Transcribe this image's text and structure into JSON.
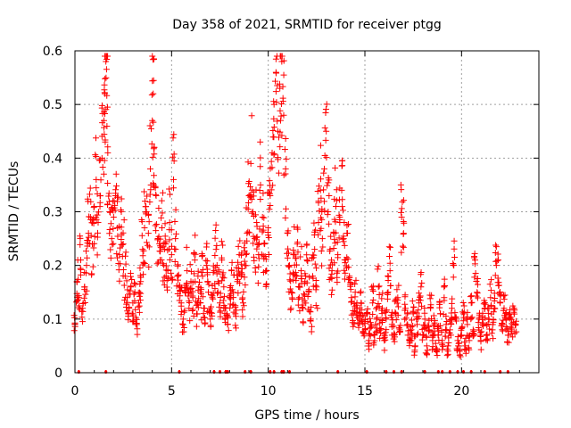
{
  "chart_data": {
    "type": "scatter",
    "title": "Day 358 of 2021, SRMTID for receiver ptgg",
    "xlabel": "GPS time / hours",
    "ylabel": "SRMTID / TECUs",
    "xlim": [
      0,
      24
    ],
    "ylim": [
      0,
      0.6
    ],
    "xticks": [
      0,
      5,
      10,
      15,
      20
    ],
    "xtick_labels": [
      "0",
      "5",
      "10",
      "15",
      "20"
    ],
    "yticks": [
      0,
      0.1,
      0.2,
      0.3,
      0.4,
      0.5,
      0.6
    ],
    "ytick_labels": [
      "0",
      "0.1",
      "0.2",
      "0.3",
      "0.4",
      "0.5",
      "0.6"
    ],
    "grid": true,
    "marker": "+",
    "color": "#ff0000",
    "series": [
      {
        "name": "SRMTID",
        "points": [
          [
            0.0,
            0.09
          ],
          [
            0.1,
            0.17
          ],
          [
            0.2,
            0.14
          ],
          [
            0.3,
            0.21
          ],
          [
            0.4,
            0.12
          ],
          [
            0.5,
            0.16
          ],
          [
            0.6,
            0.2
          ],
          [
            0.7,
            0.26
          ],
          [
            0.8,
            0.29
          ],
          [
            0.9,
            0.24
          ],
          [
            1.0,
            0.31
          ],
          [
            1.1,
            0.36
          ],
          [
            1.2,
            0.28
          ],
          [
            1.3,
            0.33
          ],
          [
            1.4,
            0.4
          ],
          [
            1.5,
            0.47
          ],
          [
            1.55,
            0.52
          ],
          [
            1.6,
            0.58
          ],
          [
            1.65,
            0.59
          ],
          [
            1.7,
            0.41
          ],
          [
            1.8,
            0.3
          ],
          [
            1.9,
            0.25
          ],
          [
            2.0,
            0.29
          ],
          [
            2.1,
            0.33
          ],
          [
            2.2,
            0.27
          ],
          [
            2.3,
            0.22
          ],
          [
            2.4,
            0.3
          ],
          [
            2.5,
            0.24
          ],
          [
            2.6,
            0.18
          ],
          [
            2.7,
            0.14
          ],
          [
            2.8,
            0.12
          ],
          [
            2.9,
            0.16
          ],
          [
            3.0,
            0.11
          ],
          [
            3.1,
            0.15
          ],
          [
            3.2,
            0.09
          ],
          [
            3.3,
            0.13
          ],
          [
            3.4,
            0.17
          ],
          [
            3.5,
            0.23
          ],
          [
            3.6,
            0.27
          ],
          [
            3.7,
            0.3
          ],
          [
            3.8,
            0.26
          ],
          [
            3.9,
            0.38
          ],
          [
            4.0,
            0.47
          ],
          [
            4.05,
            0.52
          ],
          [
            4.1,
            0.42
          ],
          [
            4.2,
            0.33
          ],
          [
            4.3,
            0.25
          ],
          [
            4.4,
            0.21
          ],
          [
            4.5,
            0.27
          ],
          [
            4.6,
            0.2
          ],
          [
            4.7,
            0.24
          ],
          [
            4.8,
            0.19
          ],
          [
            4.9,
            0.28
          ],
          [
            5.0,
            0.22
          ],
          [
            5.1,
            0.36
          ],
          [
            5.2,
            0.25
          ],
          [
            5.3,
            0.18
          ],
          [
            5.4,
            0.16
          ],
          [
            5.5,
            0.13
          ],
          [
            5.6,
            0.1
          ],
          [
            5.7,
            0.15
          ],
          [
            5.8,
            0.19
          ],
          [
            5.9,
            0.12
          ],
          [
            6.0,
            0.17
          ],
          [
            6.1,
            0.14
          ],
          [
            6.2,
            0.21
          ],
          [
            6.3,
            0.11
          ],
          [
            6.4,
            0.16
          ],
          [
            6.5,
            0.13
          ],
          [
            6.6,
            0.18
          ],
          [
            6.7,
            0.12
          ],
          [
            6.8,
            0.2
          ],
          [
            6.9,
            0.15
          ],
          [
            7.0,
            0.1
          ],
          [
            7.1,
            0.14
          ],
          [
            7.2,
            0.19
          ],
          [
            7.3,
            0.23
          ],
          [
            7.4,
            0.17
          ],
          [
            7.5,
            0.13
          ],
          [
            7.6,
            0.21
          ],
          [
            7.7,
            0.16
          ],
          [
            7.8,
            0.12
          ],
          [
            7.9,
            0.09
          ],
          [
            8.0,
            0.14
          ],
          [
            8.1,
            0.19
          ],
          [
            8.2,
            0.15
          ],
          [
            8.3,
            0.11
          ],
          [
            8.4,
            0.17
          ],
          [
            8.5,
            0.22
          ],
          [
            8.6,
            0.18
          ],
          [
            8.7,
            0.13
          ],
          [
            8.8,
            0.2
          ],
          [
            8.9,
            0.26
          ],
          [
            9.0,
            0.33
          ],
          [
            9.1,
            0.39
          ],
          [
            9.2,
            0.3
          ],
          [
            9.3,
            0.25
          ],
          [
            9.4,
            0.28
          ],
          [
            9.5,
            0.22
          ],
          [
            9.6,
            0.35
          ],
          [
            9.7,
            0.29
          ],
          [
            9.8,
            0.24
          ],
          [
            9.9,
            0.19
          ],
          [
            10.0,
            0.27
          ],
          [
            10.1,
            0.33
          ],
          [
            10.2,
            0.41
          ],
          [
            10.3,
            0.5
          ],
          [
            10.4,
            0.56
          ],
          [
            10.5,
            0.45
          ],
          [
            10.6,
            0.53
          ],
          [
            10.7,
            0.58
          ],
          [
            10.8,
            0.48
          ],
          [
            10.9,
            0.38
          ],
          [
            11.0,
            0.26
          ],
          [
            11.1,
            0.2
          ],
          [
            11.2,
            0.15
          ],
          [
            11.3,
            0.22
          ],
          [
            11.4,
            0.18
          ],
          [
            11.5,
            0.24
          ],
          [
            11.6,
            0.14
          ],
          [
            11.7,
            0.19
          ],
          [
            11.8,
            0.12
          ],
          [
            11.9,
            0.17
          ],
          [
            12.0,
            0.21
          ],
          [
            12.1,
            0.15
          ],
          [
            12.2,
            0.1
          ],
          [
            12.3,
            0.18
          ],
          [
            12.4,
            0.23
          ],
          [
            12.5,
            0.16
          ],
          [
            12.6,
            0.28
          ],
          [
            12.7,
            0.34
          ],
          [
            12.8,
            0.25
          ],
          [
            12.9,
            0.38
          ],
          [
            13.0,
            0.45
          ],
          [
            13.1,
            0.3
          ],
          [
            13.2,
            0.23
          ],
          [
            13.3,
            0.19
          ],
          [
            13.4,
            0.26
          ],
          [
            13.5,
            0.31
          ],
          [
            13.6,
            0.22
          ],
          [
            13.7,
            0.28
          ],
          [
            13.8,
            0.34
          ],
          [
            13.9,
            0.25
          ],
          [
            14.0,
            0.21
          ],
          [
            14.1,
            0.26
          ],
          [
            14.2,
            0.18
          ],
          [
            14.3,
            0.14
          ],
          [
            14.4,
            0.11
          ],
          [
            14.5,
            0.15
          ],
          [
            14.6,
            0.12
          ],
          [
            14.7,
            0.1
          ],
          [
            14.8,
            0.13
          ],
          [
            14.9,
            0.09
          ],
          [
            15.0,
            0.08
          ],
          [
            15.1,
            0.11
          ],
          [
            15.2,
            0.06
          ],
          [
            15.3,
            0.09
          ],
          [
            15.4,
            0.13
          ],
          [
            15.5,
            0.07
          ],
          [
            15.6,
            0.1
          ],
          [
            15.7,
            0.16
          ],
          [
            15.8,
            0.08
          ],
          [
            15.9,
            0.12
          ],
          [
            16.0,
            0.06
          ],
          [
            16.1,
            0.1
          ],
          [
            16.2,
            0.15
          ],
          [
            16.3,
            0.19
          ],
          [
            16.4,
            0.09
          ],
          [
            16.5,
            0.07
          ],
          [
            16.6,
            0.11
          ],
          [
            16.7,
            0.14
          ],
          [
            16.8,
            0.08
          ],
          [
            16.9,
            0.29
          ],
          [
            17.0,
            0.26
          ],
          [
            17.1,
            0.12
          ],
          [
            17.2,
            0.09
          ],
          [
            17.3,
            0.06
          ],
          [
            17.4,
            0.08
          ],
          [
            17.5,
            0.11
          ],
          [
            17.6,
            0.05
          ],
          [
            17.7,
            0.09
          ],
          [
            17.8,
            0.13
          ],
          [
            17.9,
            0.16
          ],
          [
            18.0,
            0.07
          ],
          [
            18.1,
            0.1
          ],
          [
            18.2,
            0.05
          ],
          [
            18.3,
            0.08
          ],
          [
            18.4,
            0.12
          ],
          [
            18.5,
            0.06
          ],
          [
            18.6,
            0.09
          ],
          [
            18.7,
            0.04
          ],
          [
            18.8,
            0.07
          ],
          [
            18.9,
            0.11
          ],
          [
            19.0,
            0.06
          ],
          [
            19.1,
            0.14
          ],
          [
            19.2,
            0.09
          ],
          [
            19.3,
            0.05
          ],
          [
            19.4,
            0.08
          ],
          [
            19.5,
            0.12
          ],
          [
            19.6,
            0.2
          ],
          [
            19.7,
            0.1
          ],
          [
            19.8,
            0.06
          ],
          [
            19.9,
            0.04
          ],
          [
            20.0,
            0.07
          ],
          [
            20.1,
            0.11
          ],
          [
            20.2,
            0.05
          ],
          [
            20.3,
            0.09
          ],
          [
            20.4,
            0.06
          ],
          [
            20.5,
            0.13
          ],
          [
            20.6,
            0.08
          ],
          [
            20.7,
            0.21
          ],
          [
            20.8,
            0.15
          ],
          [
            20.9,
            0.1
          ],
          [
            21.0,
            0.06
          ],
          [
            21.1,
            0.09
          ],
          [
            21.2,
            0.12
          ],
          [
            21.3,
            0.07
          ],
          [
            21.4,
            0.1
          ],
          [
            21.5,
            0.14
          ],
          [
            21.6,
            0.08
          ],
          [
            21.7,
            0.12
          ],
          [
            21.8,
            0.2
          ],
          [
            21.9,
            0.21
          ],
          [
            22.0,
            0.13
          ],
          [
            22.1,
            0.09
          ],
          [
            22.2,
            0.12
          ],
          [
            22.3,
            0.1
          ],
          [
            22.4,
            0.07
          ],
          [
            22.5,
            0.11
          ],
          [
            22.6,
            0.08
          ],
          [
            22.7,
            0.12
          ],
          [
            22.8,
            0.09
          ]
        ]
      }
    ],
    "zero_marker_x": [
      0.2,
      1.6,
      5.4,
      7.2,
      7.5,
      7.8,
      7.9,
      8.8,
      9.1,
      10.1,
      10.3,
      10.7,
      10.8,
      11.1,
      13.6,
      15.1,
      16.1,
      16.5,
      16.9,
      18.1,
      18.8,
      19.0,
      19.4,
      19.8,
      20.1,
      20.5,
      21.2,
      22.0,
      22.4
    ]
  }
}
